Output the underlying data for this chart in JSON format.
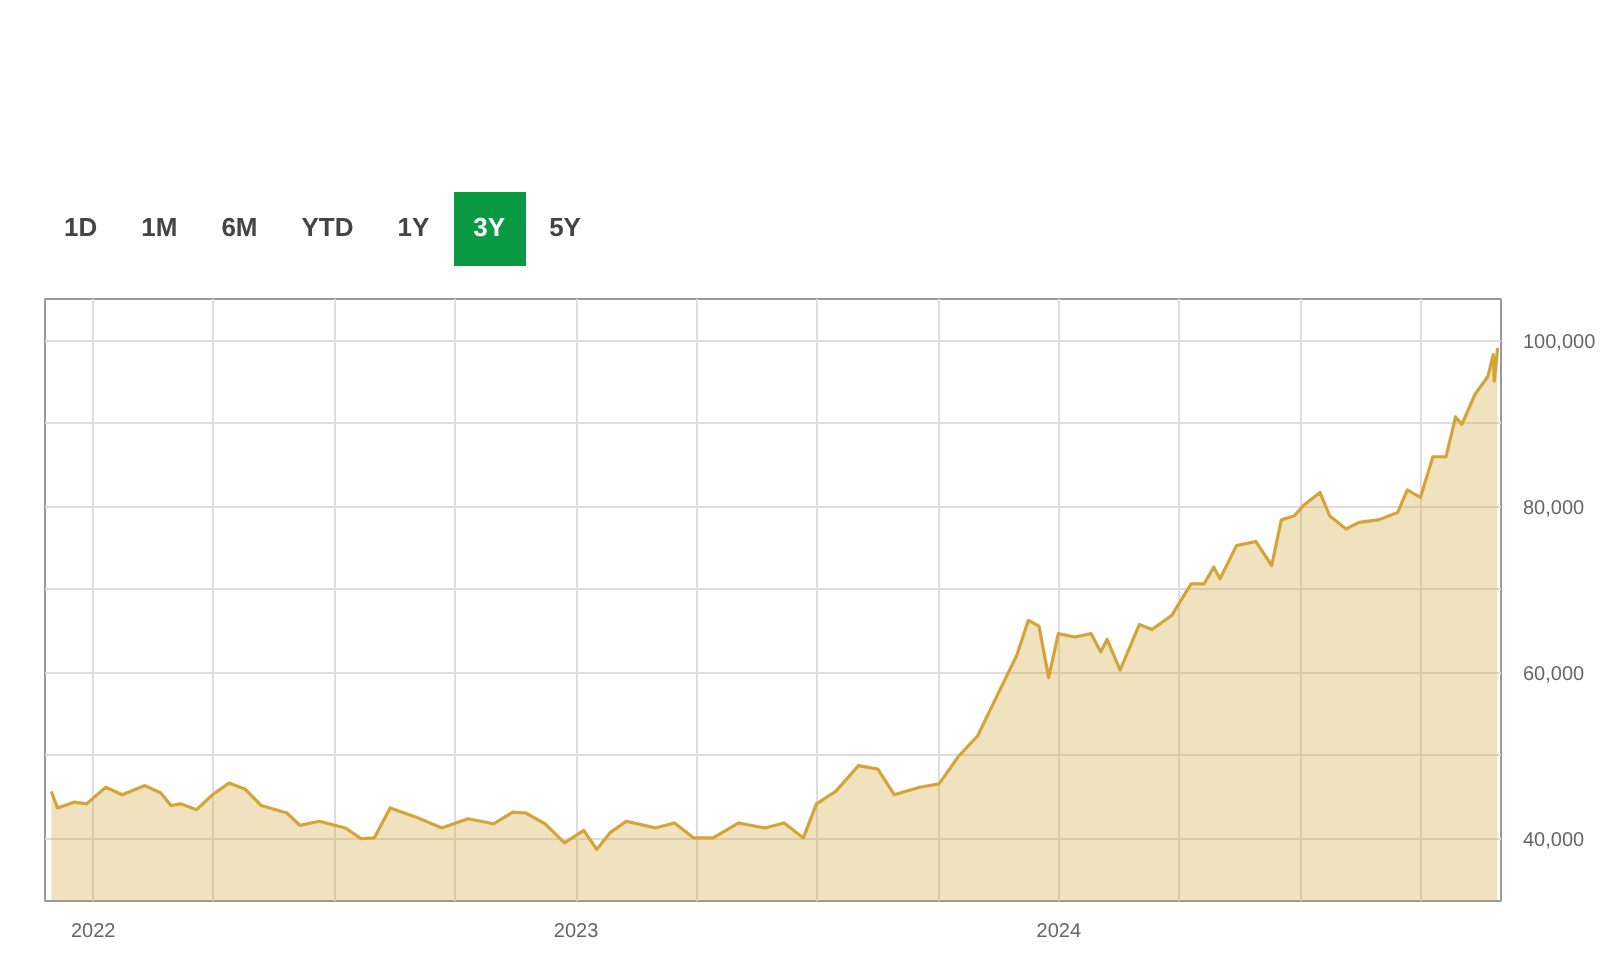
{
  "chart_data": {
    "type": "area",
    "annotations": [
      "1D",
      "1M",
      "6M",
      "YTD",
      "1Y",
      "3Y",
      "5Y"
    ],
    "x": [
      2021.913,
      2021.926,
      2021.96,
      2021.986,
      2022.026,
      2022.06,
      2022.107,
      2022.14,
      2022.161,
      2022.181,
      2022.214,
      2022.247,
      2022.281,
      2022.314,
      2022.348,
      2022.401,
      2022.428,
      2022.468,
      2022.522,
      2022.555,
      2022.582,
      2022.615,
      2022.669,
      2022.722,
      2022.776,
      2022.829,
      2022.869,
      2022.896,
      2022.936,
      2022.976,
      2023.016,
      2023.043,
      2023.07,
      2023.104,
      2023.164,
      2023.204,
      2023.244,
      2023.284,
      2023.337,
      2023.391,
      2023.431,
      2023.471,
      2023.498,
      2023.538,
      2023.585,
      2023.625,
      2023.659,
      2023.712,
      2023.752,
      2023.792,
      2023.832,
      2023.872,
      2023.913,
      2023.937,
      2023.959,
      2023.979,
      2023.999,
      2024.033,
      2024.067,
      2024.087,
      2024.1,
      2024.127,
      2024.167,
      2024.193,
      2024.234,
      2024.274,
      2024.301,
      2024.321,
      2024.334,
      2024.368,
      2024.408,
      2024.441,
      2024.461,
      2024.488,
      2024.508,
      2024.541,
      2024.561,
      2024.595,
      2024.622,
      2024.662,
      2024.702,
      2024.722,
      2024.749,
      2024.775,
      2024.802,
      2024.822,
      2024.835,
      2024.862,
      2024.889,
      2024.9,
      2024.902,
      2024.909
    ],
    "series": [
      {
        "color": "#d4a437",
        "values": [
          45700,
          43700,
          44400,
          44200,
          46200,
          45300,
          46400,
          45500,
          44000,
          44200,
          43500,
          45300,
          46700,
          46000,
          44000,
          43100,
          41600,
          42100,
          41300,
          40000,
          40100,
          43700,
          42600,
          41300,
          42400,
          41800,
          43200,
          43100,
          41800,
          39500,
          41000,
          38700,
          40700,
          42100,
          41300,
          41900,
          40100,
          40100,
          41900,
          41300,
          41900,
          40100,
          44200,
          45700,
          48800,
          48400,
          45300,
          46200,
          46600,
          49900,
          52400,
          57200,
          62100,
          66300,
          65600,
          59400,
          64700,
          64300,
          64700,
          62500,
          64000,
          60300,
          65800,
          65200,
          66900,
          70700,
          70700,
          72700,
          71300,
          75300,
          75800,
          72900,
          78400,
          78900,
          80200,
          81700,
          78900,
          77300,
          78100,
          78400,
          79300,
          82000,
          81100,
          86000,
          86000,
          90800,
          89900,
          93500,
          95700,
          98300,
          95100,
          99100
        ]
      }
    ],
    "xlim": [
      2021.9,
      2024.916
    ],
    "xticks": [
      {
        "value": 2022,
        "label": "2022"
      },
      {
        "value": 2022.25,
        "label": null
      },
      {
        "value": 2022.5,
        "label": null
      },
      {
        "value": 2022.75,
        "label": null
      },
      {
        "value": 2023,
        "label": "2023"
      },
      {
        "value": 2023.25,
        "label": null
      },
      {
        "value": 2023.5,
        "label": null
      },
      {
        "value": 2023.75,
        "label": null
      },
      {
        "value": 2024,
        "label": "2024"
      },
      {
        "value": 2024.25,
        "label": null
      },
      {
        "value": 2024.5,
        "label": null
      },
      {
        "value": 2024.75,
        "label": null
      }
    ],
    "ylim": [
      32500,
      105000
    ],
    "yticks": [
      {
        "value": 40000,
        "label": "40,000"
      },
      {
        "value": 50000,
        "label": null
      },
      {
        "value": 60000,
        "label": "60,000"
      },
      {
        "value": 70000,
        "label": null
      },
      {
        "value": 80000,
        "label": "80,000"
      },
      {
        "value": 90000,
        "label": null
      },
      {
        "value": 100000,
        "label": "100,000"
      }
    ],
    "grid": true
  }
}
